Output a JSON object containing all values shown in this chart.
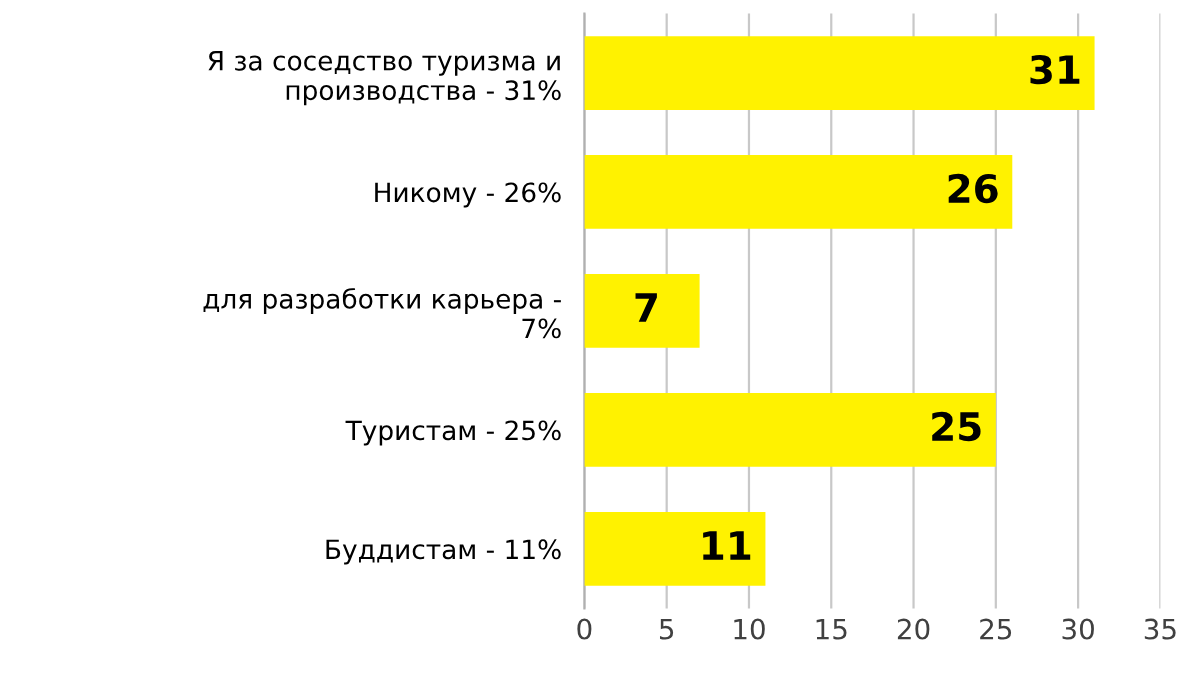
{
  "chart_data": {
    "type": "bar",
    "orientation": "horizontal",
    "categories": [
      "Я за соседство туризма и\nпроизводства - 31%",
      "Никому - 26%",
      "для разработки карьера -\n7%",
      "Туристам - 25%",
      "Буддистам - 11%"
    ],
    "values": [
      31,
      26,
      7,
      25,
      11
    ],
    "color": "#fff200",
    "xlim": [
      0,
      35
    ],
    "xticks": [
      0,
      5,
      10,
      15,
      20,
      25,
      30,
      35
    ],
    "grid": "x",
    "data_labels": true,
    "legend": false
  }
}
